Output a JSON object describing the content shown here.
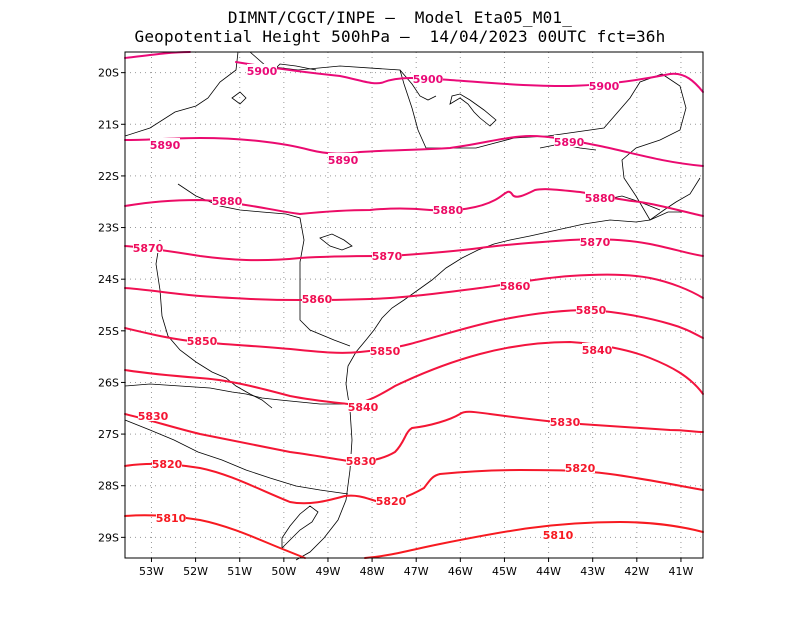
{
  "header": {
    "line1": "DIMNT/CGCT/INPE –  Model Eta05_M01_",
    "line2": "Geopotential Height 500hPa –  14/04/2023 00UTC fct=36h"
  },
  "map": {
    "lon_range": [
      -53.6,
      -40.5
    ],
    "lat_range": [
      -29.4,
      -19.6
    ],
    "lon_ticks": [
      {
        "value": -53,
        "label": "53W"
      },
      {
        "value": -52,
        "label": "52W"
      },
      {
        "value": -51,
        "label": "51W"
      },
      {
        "value": -50,
        "label": "50W"
      },
      {
        "value": -49,
        "label": "49W"
      },
      {
        "value": -48,
        "label": "48W"
      },
      {
        "value": -47,
        "label": "47W"
      },
      {
        "value": -46,
        "label": "46W"
      },
      {
        "value": -45,
        "label": "45W"
      },
      {
        "value": -44,
        "label": "44W"
      },
      {
        "value": -43,
        "label": "43W"
      },
      {
        "value": -42,
        "label": "42W"
      },
      {
        "value": -41,
        "label": "41W"
      }
    ],
    "lat_ticks": [
      {
        "value": -20,
        "label": "20S"
      },
      {
        "value": -21,
        "label": "21S"
      },
      {
        "value": -22,
        "label": "22S"
      },
      {
        "value": -23,
        "label": "23S"
      },
      {
        "value": -24,
        "label": "24S"
      },
      {
        "value": -25,
        "label": "25S"
      },
      {
        "value": -26,
        "label": "26S"
      },
      {
        "value": -27,
        "label": "27S"
      },
      {
        "value": -28,
        "label": "28S"
      },
      {
        "value": -29,
        "label": "29S"
      }
    ],
    "grid": "dotted",
    "contour_levels": [
      5900,
      5890,
      5880,
      5870,
      5860,
      5850,
      5840,
      5830,
      5820,
      5810
    ],
    "contour_colors": {
      "5900": "#ea0a78",
      "5890": "#ea0a70",
      "5880": "#ec0c66",
      "5870": "#ee0e5c",
      "5860": "#f01052",
      "5850": "#f21248",
      "5840": "#f3143e",
      "5830": "#f41634",
      "5820": "#f5182a",
      "5810": "#f71a20"
    },
    "coast_color": "#000000"
  }
}
